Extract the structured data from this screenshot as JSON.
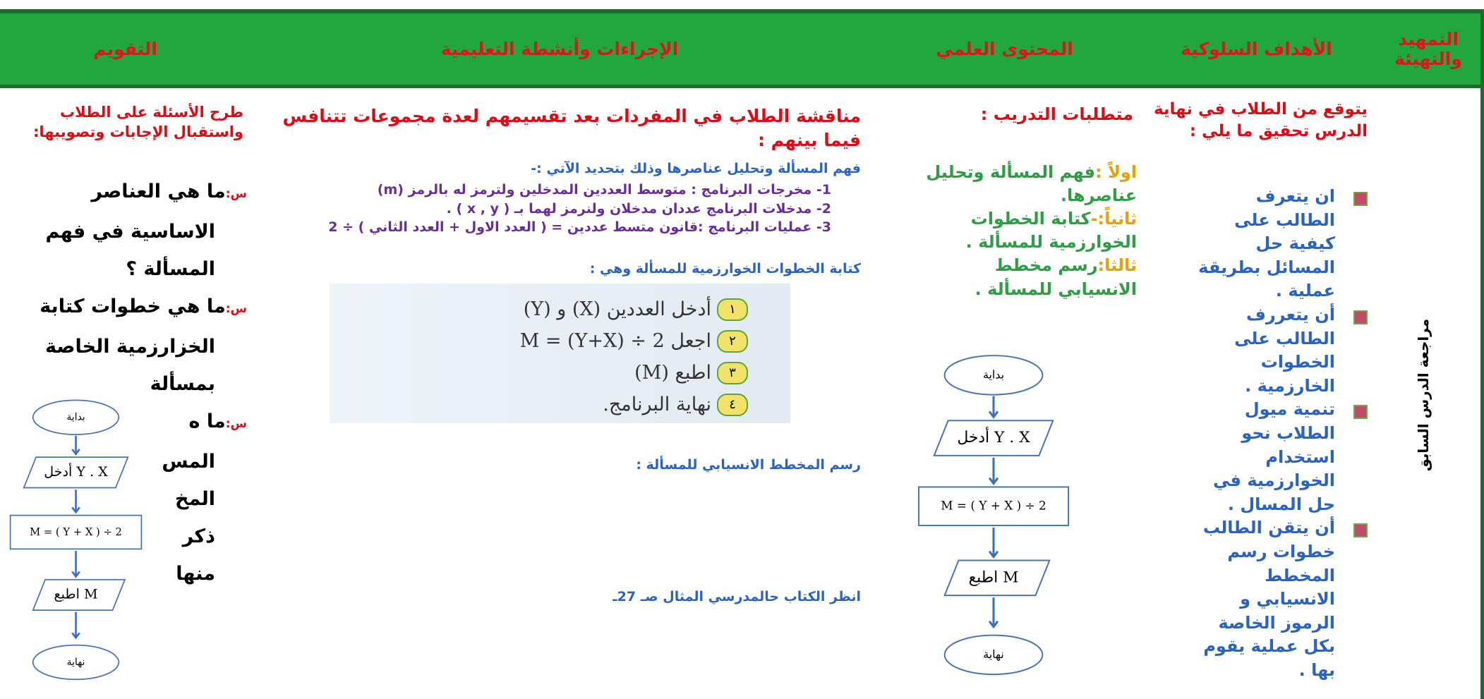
{
  "header": {
    "columns": [
      "التمهيد والتهيئة",
      "الأهداف السلوكية",
      "المحتوى العلمي",
      "الإجراءات وأنشطة التعليمية",
      "التقويم"
    ]
  },
  "intro": "مراجعة الدرس السابق",
  "objectives": {
    "heading": "يتوقع من الطلاب في نهاية الدرس تحقيق ما يلي :",
    "items": [
      "ان يتعرف الطالب على كيفية حل المسائل بطريقة عملية .",
      "أن يتعررف الطالب على الخطوات الخارزمية .",
      "تنمية ميول الطلاب نحو استخدام الخوارزمية في حل المسال .",
      "أن يتقن الطالب خطوات رسم المخطط الانسيابي و الرموز الخاصة بكل عملية يقوم بها ."
    ]
  },
  "content": {
    "heading": "متطلبات التدريب :",
    "items": [
      {
        "label": "اولاً :",
        "text": "فهم المسألة وتحليل عناصرها."
      },
      {
        "label": "ثانياً:-",
        "text": "كتابة الخطوات الخوارزمية للمسألة ."
      },
      {
        "label": "ثالثا:",
        "text": "رسم مخطط الانسيابي للمسألة ."
      }
    ]
  },
  "flowchart": {
    "start": "بداية",
    "input": "أدخل Y . X",
    "process": "M = ( Y + X ) ÷ 2",
    "output": "اطبع M",
    "end": "نهاية"
  },
  "procedures": {
    "heading": "مناقشة الطلاب في المفردات بعد تقسيمهم لعدة مجموعات تتنافس فيما بينهم :",
    "analysis": "فهم المسألة وتحليل عناصرها وذلك بتحديد الآتي :-",
    "items": [
      "1-  مخرجات البرنامج : متوسط العددين المدخلين ولترمز له بالرمز (m)",
      "2-  مدخلات البرنامج عددان مدخلان ولنرمز لهما بـ ( x , y ) .",
      "3-  عمليات البرنامج :قانون متسط عددين = ( العدد الاول + العدد الثاني ) ÷ 2"
    ],
    "steps_heading": "كتابة الخطوات الخوارزمية للمسألة وهي :",
    "steps": [
      {
        "number": "١",
        "text": "أدخل العددين (X) و (Y)"
      },
      {
        "number": "٢",
        "text": "اجعل M = (Y+X) ÷ 2"
      },
      {
        "number": "٣",
        "text": "اطبع (M)"
      },
      {
        "number": "٤",
        "text": "نهاية البرنامج."
      }
    ],
    "flowchart_heading": "رسم المخطط الانسيابي للمسألة :",
    "reference": "انظر الكتاب حالمدرسي المثال  صـ 27ـ"
  },
  "evaluation": {
    "heading": "طرح الأسئلة على الطلاب واستقبال الإجابات وتصويبها:",
    "marker": "س:",
    "questions": [
      [
        "ما هي العناصر",
        "الاساسية في فهم",
        "المسألة ؟"
      ],
      [
        "ما هي خطوات كتابة",
        "الخزارزمية الخاصة",
        "بمسألة"
      ],
      [
        "ما ه",
        "المس",
        "المخ",
        "ذكر",
        "منها"
      ]
    ]
  }
}
